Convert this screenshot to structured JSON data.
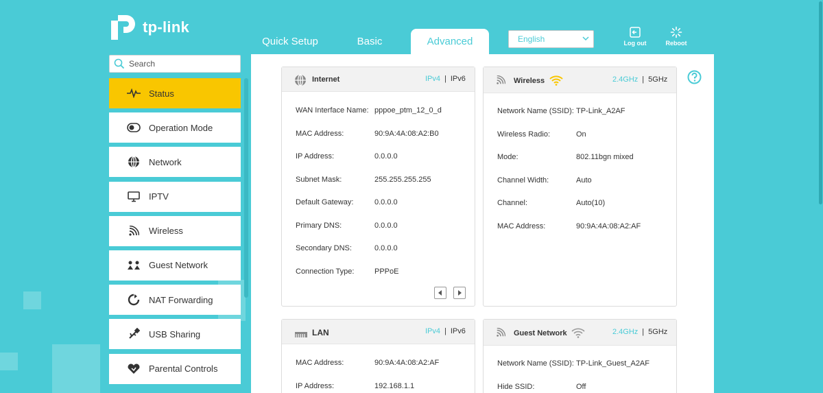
{
  "brand": {
    "name": "tp-link"
  },
  "tabs": [
    {
      "label": "Quick Setup"
    },
    {
      "label": "Basic"
    },
    {
      "label": "Advanced"
    }
  ],
  "language": {
    "selected": "English"
  },
  "top_buttons": {
    "logout": "Log out",
    "reboot": "Reboot"
  },
  "search": {
    "placeholder": "Search"
  },
  "sidebar": {
    "items": [
      {
        "label": "Status",
        "icon": "status-pulse-icon",
        "active": true
      },
      {
        "label": "Operation Mode",
        "icon": "toggle-icon"
      },
      {
        "label": "Network",
        "icon": "globe-icon"
      },
      {
        "label": "IPTV",
        "icon": "monitor-icon"
      },
      {
        "label": "Wireless",
        "icon": "wifi-icon"
      },
      {
        "label": "Guest Network",
        "icon": "guests-icon"
      },
      {
        "label": "NAT Forwarding",
        "icon": "nat-icon"
      },
      {
        "label": "USB Sharing",
        "icon": "usb-icon"
      },
      {
        "label": "Parental Controls",
        "icon": "heart-icon"
      }
    ]
  },
  "cards": {
    "internet": {
      "title": "Internet",
      "ipv4": "IPv4",
      "ipv6": "IPv6",
      "rows": [
        {
          "label": "WAN Interface Name:",
          "value": "pppoe_ptm_12_0_d"
        },
        {
          "label": "MAC Address:",
          "value": "90:9A:4A:08:A2:B0"
        },
        {
          "label": "IP Address:",
          "value": "0.0.0.0"
        },
        {
          "label": "Subnet Mask:",
          "value": "255.255.255.255"
        },
        {
          "label": "Default Gateway:",
          "value": "0.0.0.0"
        },
        {
          "label": "Primary DNS:",
          "value": "0.0.0.0"
        },
        {
          "label": "Secondary DNS:",
          "value": "0.0.0.0"
        },
        {
          "label": "Connection Type:",
          "value": "PPPoE"
        }
      ]
    },
    "wireless": {
      "title": "Wireless",
      "band_24": "2.4GHz",
      "band_5": "5GHz",
      "rows": [
        {
          "label": "Network Name (SSID):",
          "value": "TP-Link_A2AF"
        },
        {
          "label": "Wireless Radio:",
          "value": "On"
        },
        {
          "label": "Mode:",
          "value": "802.11bgn mixed"
        },
        {
          "label": "Channel Width:",
          "value": "Auto"
        },
        {
          "label": "Channel:",
          "value": "Auto(10)"
        },
        {
          "label": "MAC Address:",
          "value": "90:9A:4A:08:A2:AF"
        }
      ]
    },
    "lan": {
      "title": "LAN",
      "ipv4": "IPv4",
      "ipv6": "IPv6",
      "rows": [
        {
          "label": "MAC Address:",
          "value": "90:9A:4A:08:A2:AF"
        },
        {
          "label": "IP Address:",
          "value": "192.168.1.1"
        }
      ]
    },
    "guest": {
      "title": "Guest Network",
      "band_24": "2.4GHz",
      "band_5": "5GHz",
      "rows": [
        {
          "label": "Network Name (SSID):",
          "value": "TP-Link_Guest_A2AF"
        },
        {
          "label": "Hide SSID:",
          "value": "Off"
        }
      ]
    }
  },
  "colors": {
    "accent": "#4acbd6",
    "active": "#f9c600",
    "wifi_on": "#f9c600"
  }
}
